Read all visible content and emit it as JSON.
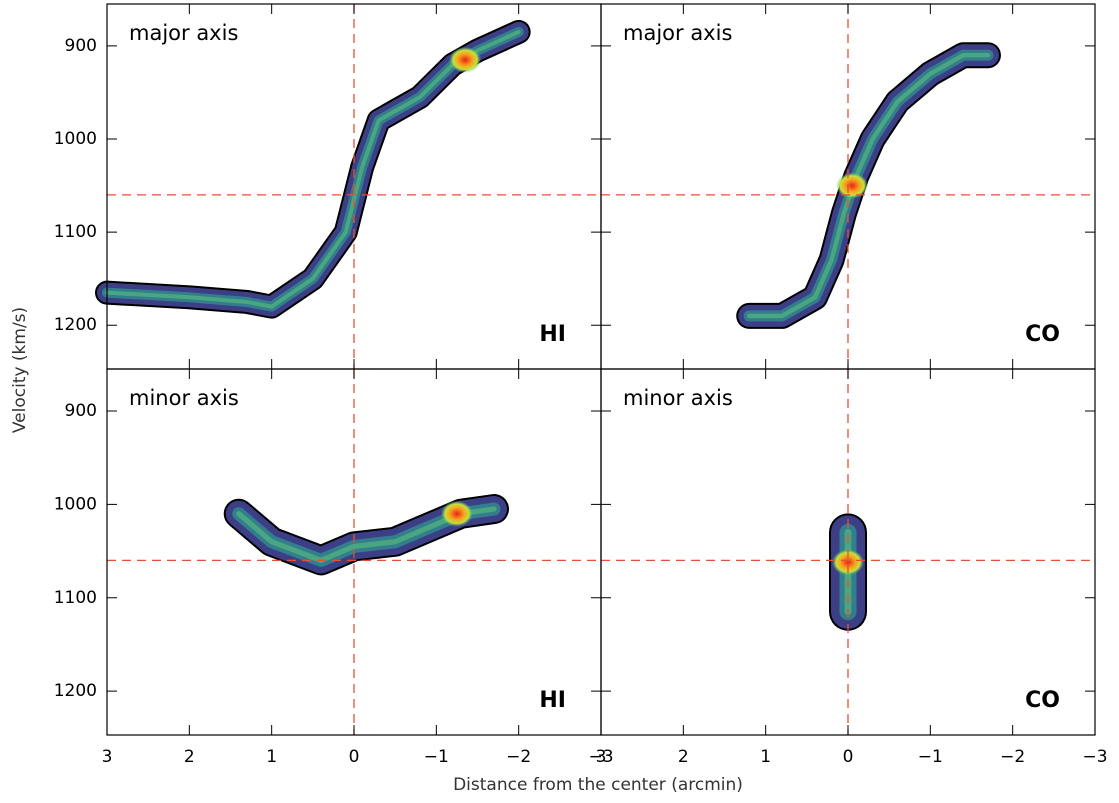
{
  "figure": {
    "xlabel": "Distance from the center (arcmin)",
    "ylabel": "Velocity (km/s)"
  },
  "chart_data": [
    {
      "type": "contour",
      "title": "major axis",
      "tracer": "HI",
      "xlim": [
        3,
        -3
      ],
      "ylim": [
        1247,
        855
      ],
      "xticks": [
        3,
        2,
        1,
        0,
        {
          "value": -1,
          "label": "−1"
        },
        {
          "value": -2,
          "label": "−2"
        },
        {
          "value": -3,
          "label": "−3"
        }
      ],
      "yticks": [
        900,
        1000,
        1100,
        1200
      ],
      "xtick_labels": false,
      "ytick_labels": true,
      "ref_x": 0,
      "ref_y": 1060,
      "ridge": {
        "x": [
          3,
          2,
          1.3,
          1,
          0.5,
          0.1,
          0,
          -0.1,
          -0.3,
          -0.8,
          -1.2,
          -1.5,
          -2
        ],
        "values": [
          1165,
          1170,
          1175,
          1180,
          1150,
          1100,
          1065,
          1030,
          980,
          955,
          920,
          905,
          885
        ]
      },
      "peak": {
        "x": -1.35,
        "y": 915
      }
    },
    {
      "type": "contour",
      "title": "major axis",
      "tracer": "CO",
      "xlim": [
        3,
        -3
      ],
      "ylim": [
        1247,
        855
      ],
      "xticks": [
        3,
        2,
        1,
        0,
        {
          "value": -1,
          "label": "−1"
        },
        {
          "value": -2,
          "label": "−2"
        },
        {
          "value": -3,
          "label": "−3"
        }
      ],
      "yticks": [
        900,
        1000,
        1100,
        1200
      ],
      "xtick_labels": false,
      "ytick_labels": false,
      "ref_x": 0,
      "ref_y": 1060,
      "ridge": {
        "x": [
          1.2,
          0.8,
          0.4,
          0.2,
          0.05,
          -0.1,
          -0.3,
          -0.6,
          -1,
          -1.4,
          -1.7
        ],
        "values": [
          1190,
          1190,
          1170,
          1130,
          1080,
          1040,
          1000,
          960,
          930,
          910,
          910
        ]
      },
      "peak": {
        "x": -0.05,
        "y": 1050
      }
    },
    {
      "type": "contour",
      "title": "minor axis",
      "tracer": "HI",
      "xlim": [
        3,
        -3
      ],
      "ylim": [
        1247,
        855
      ],
      "xticks": [
        3,
        2,
        1,
        0,
        {
          "value": -1,
          "label": "−1"
        },
        {
          "value": -2,
          "label": "−2"
        },
        {
          "value": -3,
          "label": "−3"
        }
      ],
      "yticks": [
        900,
        1000,
        1100,
        1200
      ],
      "xtick_labels": true,
      "ytick_labels": true,
      "ref_x": 0,
      "ref_y": 1060,
      "ridge": {
        "x": [
          1.4,
          1,
          0.4,
          0,
          -0.5,
          -0.9,
          -1.3,
          -1.7
        ],
        "values": [
          1010,
          1040,
          1060,
          1045,
          1040,
          1025,
          1010,
          1005
        ]
      },
      "peak": {
        "x": -1.25,
        "y": 1010
      }
    },
    {
      "type": "contour",
      "title": "minor axis",
      "tracer": "CO",
      "xlim": [
        3,
        -3
      ],
      "ylim": [
        1247,
        855
      ],
      "xticks": [
        3,
        2,
        1,
        0,
        {
          "value": -1,
          "label": "−1"
        },
        {
          "value": -2,
          "label": "−2"
        },
        {
          "value": -3,
          "label": "−3"
        }
      ],
      "yticks": [
        900,
        1000,
        1100,
        1200
      ],
      "xtick_labels": true,
      "ytick_labels": false,
      "ref_x": 0,
      "ref_y": 1060,
      "ridge": {
        "x": [
          0,
          0,
          0
        ],
        "values": [
          1030,
          1060,
          1115
        ]
      },
      "peak": {
        "x": 0,
        "y": 1062
      }
    }
  ]
}
